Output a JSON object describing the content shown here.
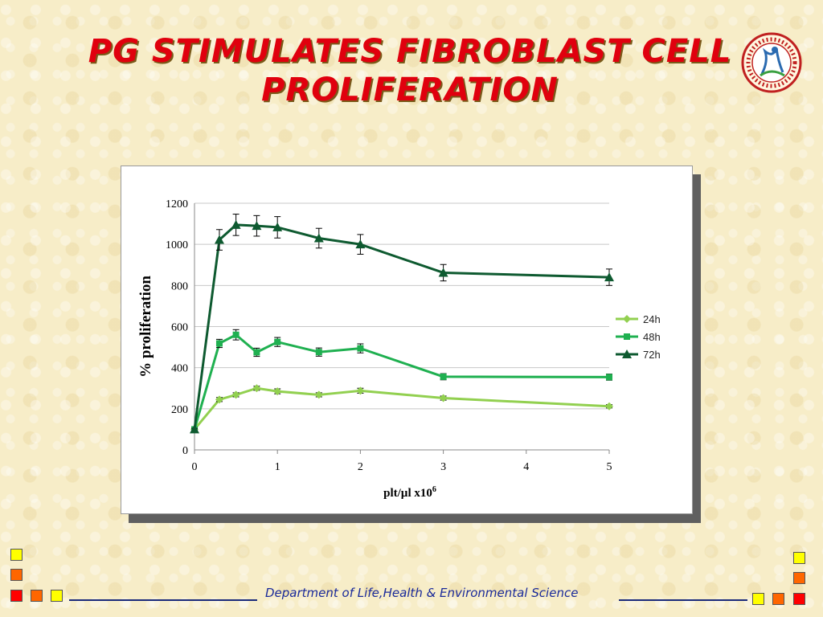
{
  "slide": {
    "title_line1": "PG STIMULATES FIBROBLAST CELL",
    "title_line2": "PROLIFERATION",
    "footer": "Department of Life,Health & Environmental Science",
    "logo_text": "DEPARTMENT OF LIFE, HEALTH & ENVIRONMENTAL SCIENCES"
  },
  "colors": {
    "title": "#e0000e",
    "footer": "#1a2a9a",
    "series_24h": "#92d050",
    "series_48h": "#1fb050",
    "series_72h": "#0e5a30"
  },
  "chart_data": {
    "type": "line",
    "title": "",
    "xlabel": "plt/µl x10",
    "xlabel_sup": "6",
    "ylabel": "% proliferation",
    "xlim": [
      0,
      5
    ],
    "ylim": [
      0,
      1200
    ],
    "x_ticks": [
      "0",
      "1",
      "2",
      "3",
      "4",
      "5"
    ],
    "y_ticks": [
      "0",
      "200",
      "400",
      "600",
      "800",
      "1000",
      "1200"
    ],
    "grid": "horizontal",
    "legend_position": "right",
    "x": [
      0,
      0.3,
      0.5,
      0.75,
      1,
      1.5,
      2,
      3,
      5
    ],
    "series": [
      {
        "name": "24h",
        "marker": "diamond",
        "color": "#92d050",
        "values": [
          100,
          245,
          268,
          300,
          285,
          268,
          288,
          252,
          212
        ],
        "errors": [
          5,
          10,
          10,
          10,
          12,
          10,
          12,
          10,
          8
        ]
      },
      {
        "name": "48h",
        "marker": "square",
        "color": "#1fb050",
        "values": [
          100,
          518,
          560,
          475,
          525,
          476,
          494,
          356,
          354
        ],
        "errors": [
          5,
          20,
          25,
          20,
          22,
          20,
          22,
          15,
          15
        ]
      },
      {
        "name": "72h",
        "marker": "triangle",
        "color": "#0e5a30",
        "values": [
          100,
          1022,
          1095,
          1090,
          1083,
          1030,
          1000,
          862,
          840
        ],
        "errors": [
          5,
          50,
          52,
          50,
          52,
          48,
          48,
          40,
          40
        ]
      }
    ]
  }
}
